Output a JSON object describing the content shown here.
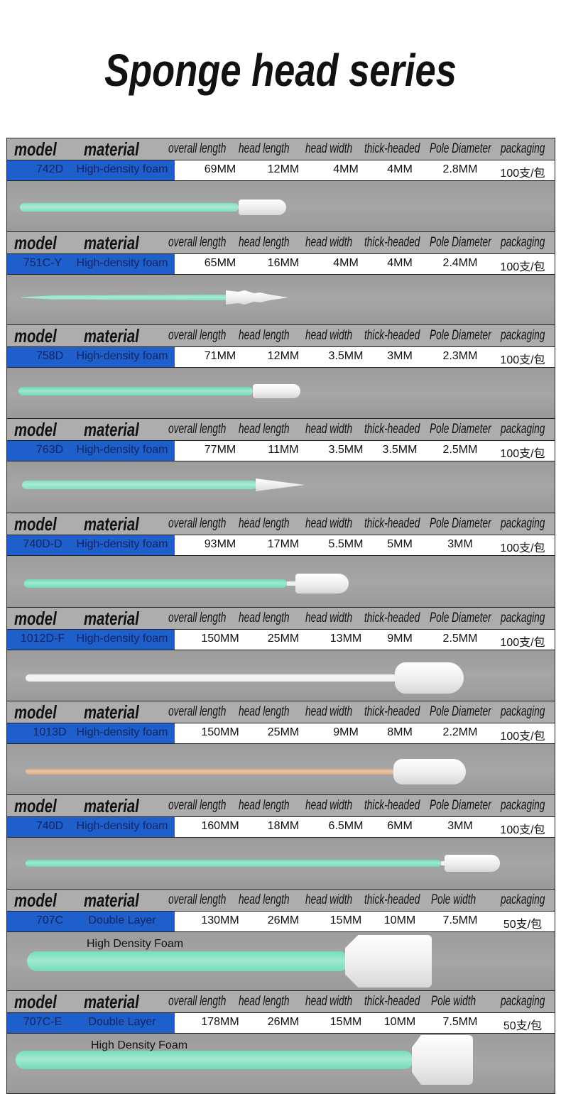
{
  "title": "Sponge head series",
  "header_labels": {
    "model": "model",
    "material": "material",
    "overall_length": "overall length",
    "head_length": "head length",
    "head_width": "head width",
    "thick_headed": "thick-headed",
    "pole_diameter": "Pole Diameter",
    "pole_width": "Pole width",
    "packaging": "packaging"
  },
  "colors": {
    "row_blue": "#1f5fcc",
    "header_gray": "#adadad",
    "photo_gray": "#a0a0a0",
    "green_handle": "#7fe0bd",
    "foam_white": "#f4f4f4",
    "wood_handle": "#d9a882",
    "white_handle": "#f0f0f0"
  },
  "products": [
    {
      "model": "742D",
      "material": "High-density foam",
      "overall_length": "69MM",
      "head_length": "12MM",
      "head_width": "4MM",
      "thick_headed": "4MM",
      "pole": "2.8MM",
      "pole_label": "pole_diameter",
      "packaging": "100支/包",
      "handle_color": "#7fe0bd",
      "caption": ""
    },
    {
      "model": "751C-Y",
      "material": "High-density foam",
      "overall_length": "65MM",
      "head_length": "16MM",
      "head_width": "4MM",
      "thick_headed": "4MM",
      "pole": "2.4MM",
      "pole_label": "pole_diameter",
      "packaging": "100支/包",
      "handle_color": "#7fe0bd",
      "caption": ""
    },
    {
      "model": "758D",
      "material": "High-density foam",
      "overall_length": "71MM",
      "head_length": "12MM",
      "head_width": "3.5MM",
      "thick_headed": "3MM",
      "pole": "2.3MM",
      "pole_label": "pole_diameter",
      "packaging": "100支/包",
      "handle_color": "#6fdcb5",
      "caption": ""
    },
    {
      "model": "763D",
      "material": "High-density foam",
      "overall_length": "77MM",
      "head_length": "11MM",
      "head_width": "3.5MM",
      "thick_headed": "3.5MM",
      "pole": "2.5MM",
      "pole_label": "pole_diameter",
      "packaging": "100支/包",
      "handle_color": "#7fe0bd",
      "caption": ""
    },
    {
      "model": "740D-D",
      "material": "High-density foam",
      "overall_length": "93MM",
      "head_length": "17MM",
      "head_width": "5.5MM",
      "thick_headed": "5MM",
      "pole": "3MM",
      "pole_label": "pole_diameter",
      "packaging": "100支/包",
      "handle_color": "#6fdcb5",
      "caption": ""
    },
    {
      "model": "1012D-F",
      "material": "High-density foam",
      "overall_length": "150MM",
      "head_length": "25MM",
      "head_width": "13MM",
      "thick_headed": "9MM",
      "pole": "2.5MM",
      "pole_label": "pole_diameter",
      "packaging": "100支/包",
      "handle_color": "#f0f0f0",
      "caption": ""
    },
    {
      "model": "1013D",
      "material": "High-density foam",
      "overall_length": "150MM",
      "head_length": "25MM",
      "head_width": "9MM",
      "thick_headed": "8MM",
      "pole": "2.2MM",
      "pole_label": "pole_diameter",
      "packaging": "100支/包",
      "handle_color": "#d9a882",
      "caption": ""
    },
    {
      "model": "740D",
      "material": "High-density foam",
      "overall_length": "160MM",
      "head_length": "18MM",
      "head_width": "6.5MM",
      "thick_headed": "6MM",
      "pole": "3MM",
      "pole_label": "pole_diameter",
      "packaging": "100支/包",
      "handle_color": "#6fdcb5",
      "caption": ""
    },
    {
      "model": "707C",
      "material": "Double Layer",
      "overall_length": "130MM",
      "head_length": "26MM",
      "head_width": "15MM",
      "thick_headed": "10MM",
      "pole": "7.5MM",
      "pole_label": "pole_width",
      "packaging": "50支/包",
      "handle_color": "#74ddb8",
      "caption": "High Density Foam"
    },
    {
      "model": "707C-E",
      "material": "Double Layer",
      "overall_length": "178MM",
      "head_length": "26MM",
      "head_width": "15MM",
      "thick_headed": "10MM",
      "pole": "7.5MM",
      "pole_label": "pole_width",
      "packaging": "50支/包",
      "handle_color": "#74ddb8",
      "caption": "High Density Foam"
    }
  ]
}
